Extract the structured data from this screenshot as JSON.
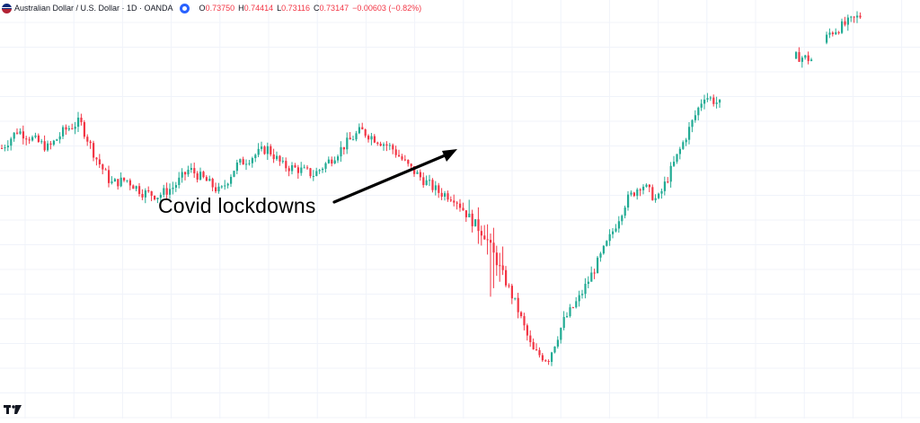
{
  "header": {
    "symbol_title": "Australian Dollar / U.S. Dollar · 1D · OANDA",
    "ohlc": [
      {
        "key": "O",
        "value": "0.73750"
      },
      {
        "key": "H",
        "value": "0.74414"
      },
      {
        "key": "L",
        "value": "0.73116"
      },
      {
        "key": "C",
        "value": "0.73147"
      }
    ],
    "change": "−0.00603 (−0.82%)"
  },
  "colors": {
    "up": "#22ab94",
    "down": "#f23645",
    "grid": "#f0f3fa",
    "text": "#131722",
    "arrow": "#000000"
  },
  "icons": [
    "currency-flags-icon",
    "eye-icon",
    "tradingview-logo-icon"
  ],
  "chart_data": {
    "type": "candlestick",
    "title": "Australian Dollar / U.S. Dollar · 1D · OANDA",
    "annotations": [
      {
        "text": "Covid lockdowns",
        "points_to": "March 2020 low"
      }
    ],
    "grid": true,
    "price_trend_y": [
      0.69,
      0.7,
      0.695,
      0.69,
      0.7,
      0.705,
      0.685,
      0.67,
      0.672,
      0.665,
      0.663,
      0.668,
      0.678,
      0.672,
      0.665,
      0.68,
      0.685,
      0.69,
      0.68,
      0.678,
      0.675,
      0.683,
      0.692,
      0.7,
      0.695,
      0.69,
      0.68,
      0.672,
      0.665,
      0.662,
      0.65,
      0.64,
      0.62,
      0.6,
      0.575,
      0.57,
      0.592,
      0.605,
      0.622,
      0.64,
      0.66,
      0.67,
      0.66,
      0.68,
      0.7,
      0.72,
      0.715,
      0.715,
      0.722,
      0.732,
      0.738,
      0.742,
      0.74,
      0.755,
      0.76,
      0.765
    ],
    "series_colors": {
      "up": "#22ab94",
      "down": "#f23645"
    }
  }
}
